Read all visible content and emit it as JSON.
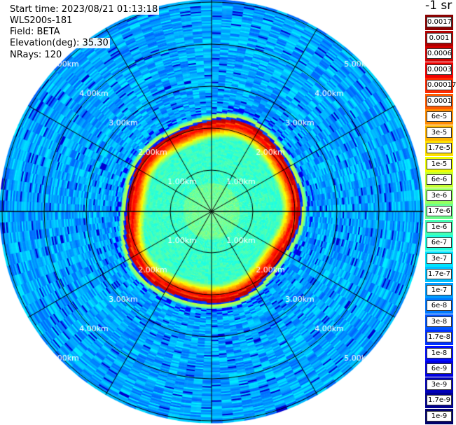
{
  "header": {
    "start_time": "Start time: 2023/08/21 01:13:18",
    "instrument": "WLS200s-181",
    "field": "Field: BETA",
    "elevation": "Elevation(deg): 35.30",
    "nrays": "NRays: 120"
  },
  "units": "-1 sr",
  "range_labels": [
    "1.00km",
    "2.00km",
    "3.00km",
    "4.00km",
    "5.00km"
  ],
  "colorbar": [
    {
      "label": "0.0017",
      "color": "#8b0000"
    },
    {
      "label": "0.001",
      "color": "#b00000"
    },
    {
      "label": "0.0006",
      "color": "#d40000"
    },
    {
      "label": "0.0003",
      "color": "#f00000"
    },
    {
      "label": "0.00017",
      "color": "#ff2a00"
    },
    {
      "label": "0.0001",
      "color": "#ff5a00"
    },
    {
      "label": "6e-5",
      "color": "#ff8c00"
    },
    {
      "label": "3e-5",
      "color": "#ffb400"
    },
    {
      "label": "1.7e-5",
      "color": "#ffe000"
    },
    {
      "label": "1e-5",
      "color": "#f0ff00"
    },
    {
      "label": "6e-6",
      "color": "#c4ff30"
    },
    {
      "label": "3e-6",
      "color": "#96ff60"
    },
    {
      "label": "1.7e-6",
      "color": "#6cff8c"
    },
    {
      "label": "1e-6",
      "color": "#44ffb4"
    },
    {
      "label": "6e-7",
      "color": "#20ffe0"
    },
    {
      "label": "3e-7",
      "color": "#00e4ff"
    },
    {
      "label": "1.7e-7",
      "color": "#00c0ff"
    },
    {
      "label": "1e-7",
      "color": "#009cff"
    },
    {
      "label": "6e-8",
      "color": "#0078ff"
    },
    {
      "label": "3e-8",
      "color": "#0054ff"
    },
    {
      "label": "1.7e-8",
      "color": "#0030ff"
    },
    {
      "label": "1e-8",
      "color": "#000cff"
    },
    {
      "label": "6e-9",
      "color": "#0000e0"
    },
    {
      "label": "3e-9",
      "color": "#0000b8"
    },
    {
      "label": "1.7e-9",
      "color": "#000090"
    },
    {
      "label": "1e-9",
      "color": "#00006a"
    }
  ],
  "colors": {
    "grid_line": "#000000",
    "range_label": "#ffffff"
  }
}
